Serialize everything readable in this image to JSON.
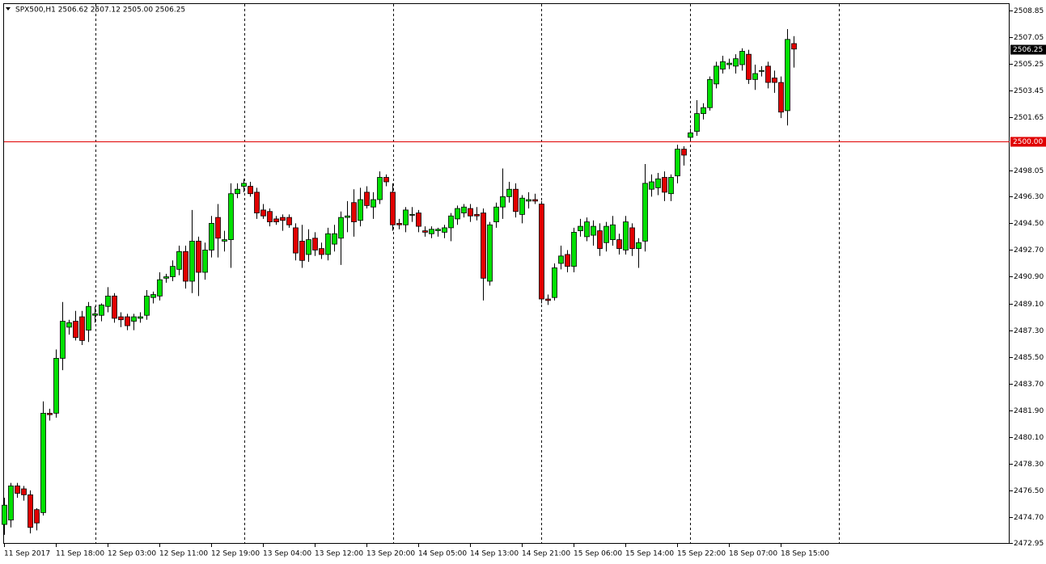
{
  "chart_data": {
    "type": "candlestick",
    "title": "SPX500,H1  2506.62 2507.12 2505.00 2506.25",
    "categories": [
      "11 Sep 2017",
      null,
      null,
      null,
      null,
      null,
      null,
      null,
      "11 Sep 18:00",
      null,
      null,
      null,
      null,
      null,
      null,
      null,
      "12 Sep 03:00",
      null,
      null,
      null,
      null,
      null,
      null,
      null,
      "12 Sep 11:00",
      null,
      null,
      null,
      null,
      null,
      null,
      null,
      "12 Sep 19:00",
      null,
      null,
      null,
      null,
      null,
      null,
      null,
      "13 Sep 04:00",
      null,
      null,
      null,
      null,
      null,
      null,
      null,
      "13 Sep 12:00",
      null,
      null,
      null,
      null,
      null,
      null,
      null,
      "13 Sep 20:00",
      null,
      null,
      null,
      null,
      null,
      null,
      null,
      "14 Sep 05:00",
      null,
      null,
      null,
      null,
      null,
      null,
      null,
      "14 Sep 13:00",
      null,
      null,
      null,
      null,
      null,
      null,
      null,
      "14 Sep 21:00",
      null,
      null,
      null,
      null,
      null,
      null,
      null,
      "15 Sep 06:00",
      null,
      null,
      null,
      null,
      null,
      null,
      null,
      "15 Sep 14:00",
      null,
      null,
      null,
      null,
      null,
      null,
      null,
      "15 Sep 22:00",
      null,
      null,
      null,
      null,
      null,
      null,
      null,
      "18 Sep 07:00",
      null,
      null,
      null,
      null,
      null,
      null,
      null,
      "18 Sep 15:00",
      null,
      null
    ],
    "open": [
      2474.2,
      2474.5,
      2476.8,
      2476.6,
      2476.2,
      2475.2,
      2475.0,
      2481.7,
      2481.7,
      2485.4,
      2487.5,
      2487.9,
      2488.2,
      2487.3,
      2488.3,
      2488.3,
      2488.9,
      2489.6,
      2488.2,
      2488.2,
      2487.9,
      2488.1,
      2488.3,
      2489.5,
      2489.6,
      2490.8,
      2490.9,
      2491.4,
      2492.6,
      2490.6,
      2493.3,
      2491.2,
      2492.7,
      2494.9,
      2493.3,
      2493.4,
      2496.5,
      2497.0,
      2497.0,
      2496.6,
      2495.4,
      2495.3,
      2494.8,
      2494.9,
      2494.9,
      2494.2,
      2493.3,
      2492.4,
      2493.5,
      2492.8,
      2492.4,
      2493.1,
      2493.5,
      2494.9,
      2495.9,
      2494.7,
      2496.6,
      2495.6,
      2496.1,
      2497.6,
      2496.6,
      2494.5,
      2494.4,
      2495.1,
      2495.2,
      2494.0,
      2493.8,
      2494.0,
      2493.9,
      2494.2,
      2494.8,
      2495.2,
      2495.5,
      2495.1,
      2495.2,
      2490.6,
      2494.6,
      2495.6,
      2496.3,
      2496.8,
      2495.1,
      2496.0,
      2496.1,
      2495.8,
      2489.4,
      2489.5,
      2491.8,
      2492.4,
      2491.6,
      2494.0,
      2493.6,
      2493.7,
      2494.0,
      2493.2,
      2493.4,
      2493.4,
      2492.7,
      2494.2,
      2492.8,
      2493.3,
      2496.8,
      2496.9,
      2497.6,
      2496.5,
      2497.7,
      2499.5,
      2500.3,
      2500.7,
      2501.9,
      2502.3,
      2503.9,
      2504.9,
      2505.2,
      2505.1,
      2505.2,
      2505.9,
      2504.2,
      2504.8,
      2505.1,
      2504.3,
      2504.0,
      2502.1,
      2506.62
    ],
    "high": [
      2476.0,
      2477.0,
      2477.0,
      2476.8,
      2476.5,
      2475.3,
      2482.5,
      2482.0,
      2486.0,
      2489.2,
      2488.0,
      2488.6,
      2488.6,
      2489.2,
      2488.9,
      2489.1,
      2490.2,
      2489.8,
      2488.5,
      2488.4,
      2488.4,
      2488.5,
      2490.0,
      2489.9,
      2491.2,
      2491.1,
      2492.0,
      2493.0,
      2493.0,
      2495.4,
      2493.6,
      2493.2,
      2495.0,
      2495.8,
      2494.0,
      2497.2,
      2497.2,
      2497.5,
      2497.3,
      2496.9,
      2495.8,
      2495.5,
      2495.0,
      2495.1,
      2495.1,
      2494.5,
      2494.4,
      2494.1,
      2493.9,
      2493.2,
      2494.2,
      2494.4,
      2495.3,
      2496.0,
      2496.8,
      2496.9,
      2497.0,
      2496.6,
      2498.0,
      2497.8,
      2497.2,
      2494.8,
      2495.6,
      2495.6,
      2495.4,
      2494.3,
      2494.3,
      2494.2,
      2494.4,
      2495.2,
      2495.7,
      2495.8,
      2495.8,
      2495.6,
      2495.5,
      2494.6,
      2495.9,
      2498.2,
      2497.3,
      2497.2,
      2496.4,
      2496.6,
      2496.5,
      2496.0,
      2489.7,
      2491.8,
      2493.0,
      2492.7,
      2494.2,
      2494.8,
      2494.9,
      2494.7,
      2494.5,
      2494.6,
      2495.0,
      2493.8,
      2495.0,
      2494.5,
      2493.5,
      2498.5,
      2497.8,
      2497.9,
      2498.0,
      2497.8,
      2499.8,
      2499.7,
      2500.9,
      2502.8,
      2502.6,
      2504.4,
      2505.4,
      2505.8,
      2505.6,
      2505.9,
      2506.3,
      2506.2,
      2505.2,
      2505.1,
      2505.4,
      2504.8,
      2504.4,
      2507.6,
      2507.12
    ],
    "low": [
      2473.5,
      2474.0,
      2476.0,
      2475.8,
      2473.6,
      2473.8,
      2474.8,
      2481.2,
      2481.4,
      2484.6,
      2487.0,
      2486.6,
      2486.3,
      2486.5,
      2487.8,
      2487.9,
      2488.5,
      2487.8,
      2487.5,
      2487.3,
      2487.3,
      2487.8,
      2488.0,
      2489.1,
      2489.3,
      2490.5,
      2490.6,
      2491.0,
      2490.1,
      2489.8,
      2489.6,
      2490.7,
      2492.2,
      2492.2,
      2492.6,
      2491.5,
      2496.2,
      2496.6,
      2496.3,
      2494.8,
      2494.8,
      2494.3,
      2494.4,
      2494.0,
      2494.2,
      2492.0,
      2491.5,
      2491.9,
      2492.3,
      2492.1,
      2492.0,
      2492.6,
      2491.7,
      2493.9,
      2493.6,
      2494.3,
      2495.5,
      2494.8,
      2495.8,
      2497.0,
      2494.0,
      2494.1,
      2493.9,
      2494.6,
      2493.9,
      2493.6,
      2493.5,
      2493.6,
      2493.5,
      2493.3,
      2494.4,
      2494.9,
      2494.6,
      2494.7,
      2489.3,
      2490.3,
      2494.2,
      2494.8,
      2495.9,
      2494.9,
      2494.5,
      2495.5,
      2495.8,
      2489.1,
      2489.0,
      2489.3,
      2491.4,
      2491.2,
      2491.2,
      2493.6,
      2493.3,
      2493.0,
      2492.3,
      2492.6,
      2493.0,
      2492.4,
      2492.4,
      2492.3,
      2491.5,
      2492.6,
      2496.3,
      2496.4,
      2496.0,
      2496.0,
      2497.2,
      2498.4,
      2500.1,
      2500.4,
      2501.5,
      2502.1,
      2503.6,
      2504.6,
      2504.9,
      2504.6,
      2504.8,
      2503.9,
      2503.5,
      2504.4,
      2503.6,
      2503.3,
      2501.6,
      2501.1,
      2505.0
    ],
    "close": [
      2475.5,
      2476.8,
      2476.3,
      2476.2,
      2474.0,
      2474.3,
      2481.7,
      2481.6,
      2485.4,
      2487.9,
      2487.8,
      2486.8,
      2486.6,
      2488.9,
      2488.4,
      2489.0,
      2489.6,
      2488.1,
      2488.0,
      2487.6,
      2488.2,
      2488.2,
      2489.6,
      2489.7,
      2490.7,
      2490.9,
      2491.6,
      2492.6,
      2490.6,
      2493.3,
      2491.2,
      2492.7,
      2494.5,
      2493.5,
      2493.4,
      2496.5,
      2496.8,
      2497.2,
      2496.5,
      2495.2,
      2495.0,
      2494.6,
      2494.6,
      2494.7,
      2494.4,
      2492.5,
      2492.0,
      2493.4,
      2492.7,
      2492.4,
      2493.8,
      2493.8,
      2494.9,
      2495.0,
      2494.6,
      2496.1,
      2495.7,
      2496.1,
      2497.6,
      2497.3,
      2494.4,
      2494.4,
      2495.4,
      2495.1,
      2494.3,
      2493.9,
      2494.1,
      2494.1,
      2494.2,
      2495.0,
      2495.5,
      2495.6,
      2495.0,
      2495.0,
      2490.8,
      2494.4,
      2495.6,
      2496.3,
      2496.8,
      2495.3,
      2496.2,
      2496.1,
      2496.0,
      2489.4,
      2489.3,
      2491.5,
      2492.3,
      2491.6,
      2493.9,
      2494.3,
      2494.6,
      2494.3,
      2492.8,
      2494.3,
      2494.4,
      2492.8,
      2494.6,
      2492.8,
      2493.2,
      2497.2,
      2497.3,
      2497.5,
      2496.6,
      2497.6,
      2499.5,
      2499.1,
      2500.6,
      2501.9,
      2502.3,
      2504.2,
      2505.1,
      2505.4,
      2505.3,
      2505.6,
      2506.1,
      2504.2,
      2504.6,
      2504.8,
      2504.0,
      2504.0,
      2502.0,
      2506.9,
      2506.25
    ],
    "up_color": "#00e000",
    "down_color": "#e00000",
    "ylim": [
      2472.95,
      2508.85
    ],
    "yticks": [
      2508.85,
      2507.05,
      2505.25,
      2503.45,
      2501.65,
      2498.05,
      {
        "value": 2496.3,
        "label": "2496.30"
      },
      {
        "value": 2494.5,
        "label": "2494.50"
      },
      {
        "value": 2492.7,
        "label": "2492.70"
      },
      {
        "value": 2490.9,
        "label": "2490.90"
      },
      {
        "value": 2489.1,
        "label": "2489.10"
      },
      {
        "value": 2487.3,
        "label": "2487.30"
      },
      {
        "value": 2485.5,
        "label": "2485.50"
      },
      {
        "value": 2483.7,
        "label": "2483.70"
      },
      {
        "value": 2481.9,
        "label": "2481.90"
      },
      {
        "value": 2480.1,
        "label": "2480.10"
      },
      {
        "value": 2478.3,
        "label": "2478.30"
      },
      {
        "value": 2476.5,
        "label": "2476.50"
      },
      {
        "value": 2474.7,
        "label": "2474.70"
      },
      2472.95
    ],
    "hline": {
      "value": 2500,
      "label": "2500.00",
      "color": "#e00000"
    },
    "price_label": {
      "value": 2506.25,
      "label": "2506.25"
    }
  }
}
